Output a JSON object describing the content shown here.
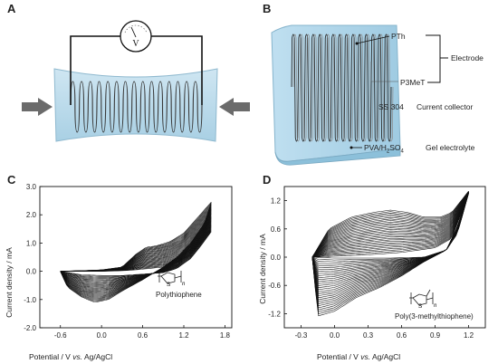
{
  "panels": {
    "a": {
      "letter": "A",
      "meter_label": "V"
    },
    "b": {
      "letter": "B",
      "labels": {
        "pth": "PTh",
        "p3met": "P3MeT",
        "electrode": "Electrode",
        "ss304": "SS 304",
        "current_collector": "Current collector",
        "pva": "PVA/H",
        "pva_sub1": "2",
        "pva_mid": "SO",
        "pva_sub2": "4",
        "gel": "Gel electrolyte"
      }
    },
    "c": {
      "letter": "C",
      "structure_label": "Polythiophene",
      "sulfur": "S",
      "n": "n"
    },
    "d": {
      "letter": "D",
      "structure_label": "Poly(3-methylthiophene)",
      "sulfur": "S",
      "n": "n"
    }
  },
  "chart_data": [
    {
      "type": "line",
      "panel": "C",
      "xlabel_prefix": "Potential / V ",
      "xlabel_italic": "vs.",
      "xlabel_suffix": " Ag/AgCl",
      "ylabel": "Current density / mA",
      "xlim": [
        -0.9,
        1.9
      ],
      "ylim": [
        -2.0,
        3.0
      ],
      "xticks": [
        "-0.6",
        "0.0",
        "0.6",
        "1.2",
        "1.8"
      ],
      "xtick_values": [
        -0.6,
        0.0,
        0.6,
        1.2,
        1.8
      ],
      "yticks": [
        "3.0",
        "2.0",
        "1.0",
        "0.0",
        "-1.0",
        "-2.0"
      ],
      "ytick_values": [
        3.0,
        2.0,
        1.0,
        0.0,
        -1.0,
        -2.0
      ],
      "n_cycles": 30,
      "outer_cycle": {
        "forward": [
          [
            -0.6,
            0.0
          ],
          [
            -0.3,
            0.02
          ],
          [
            0.0,
            0.05
          ],
          [
            0.3,
            0.15
          ],
          [
            0.5,
            0.6
          ],
          [
            0.65,
            0.85
          ],
          [
            0.8,
            0.9
          ],
          [
            1.0,
            1.05
          ],
          [
            1.2,
            1.35
          ],
          [
            1.4,
            1.9
          ],
          [
            1.6,
            2.45
          ]
        ],
        "reverse": [
          [
            1.6,
            2.45
          ],
          [
            1.5,
            1.7
          ],
          [
            1.3,
            1.0
          ],
          [
            1.1,
            0.5
          ],
          [
            0.9,
            0.15
          ],
          [
            0.6,
            -0.3
          ],
          [
            0.3,
            -0.7
          ],
          [
            0.1,
            -1.0
          ],
          [
            -0.1,
            -1.1
          ],
          [
            -0.3,
            -0.9
          ],
          [
            -0.5,
            -0.55
          ],
          [
            -0.6,
            0.0
          ]
        ]
      },
      "inner_cycle": {
        "forward": [
          [
            -0.6,
            0.0
          ],
          [
            -0.3,
            0.0
          ],
          [
            0.0,
            0.0
          ],
          [
            0.3,
            0.02
          ],
          [
            0.5,
            0.05
          ],
          [
            0.7,
            0.1
          ],
          [
            0.9,
            0.15
          ],
          [
            1.1,
            0.3
          ],
          [
            1.3,
            0.6
          ],
          [
            1.45,
            1.0
          ],
          [
            1.6,
            1.4
          ]
        ],
        "reverse": [
          [
            1.6,
            1.4
          ],
          [
            1.45,
            0.9
          ],
          [
            1.3,
            0.45
          ],
          [
            1.1,
            0.1
          ],
          [
            0.9,
            -0.05
          ],
          [
            0.6,
            -0.1
          ],
          [
            0.3,
            -0.15
          ],
          [
            0.0,
            -0.15
          ],
          [
            -0.3,
            -0.12
          ],
          [
            -0.6,
            0.0
          ]
        ]
      }
    },
    {
      "type": "line",
      "panel": "D",
      "xlabel_prefix": "Potential / V ",
      "xlabel_italic": "vs.",
      "xlabel_suffix": " Ag/AgCl",
      "ylabel": "Current density / mA",
      "xlim": [
        -0.45,
        1.35
      ],
      "ylim": [
        -1.5,
        1.5
      ],
      "xticks": [
        "-0.3",
        "0.0",
        "0.3",
        "0.6",
        "0.9",
        "1.2"
      ],
      "xtick_values": [
        -0.3,
        0.0,
        0.3,
        0.6,
        0.9,
        1.2
      ],
      "yticks": [
        "1.2",
        "0.6",
        "0.0",
        "-0.6",
        "-1.2"
      ],
      "ytick_values": [
        1.2,
        0.6,
        0.0,
        -0.6,
        -1.2
      ],
      "n_cycles": 30,
      "outer_cycle": {
        "forward": [
          [
            -0.2,
            0.0
          ],
          [
            -0.05,
            0.6
          ],
          [
            0.15,
            0.85
          ],
          [
            0.35,
            0.95
          ],
          [
            0.5,
            1.0
          ],
          [
            0.65,
            0.95
          ],
          [
            0.8,
            0.85
          ],
          [
            0.95,
            0.85
          ],
          [
            1.05,
            0.95
          ],
          [
            1.2,
            1.4
          ]
        ],
        "reverse": [
          [
            1.2,
            1.4
          ],
          [
            1.1,
            0.65
          ],
          [
            1.0,
            0.15
          ],
          [
            0.8,
            -0.1
          ],
          [
            0.6,
            -0.4
          ],
          [
            0.4,
            -0.65
          ],
          [
            0.2,
            -0.85
          ],
          [
            0.0,
            -1.15
          ],
          [
            -0.15,
            -1.25
          ],
          [
            -0.2,
            0.0
          ]
        ]
      },
      "inner_cycle": {
        "forward": [
          [
            -0.2,
            0.0
          ],
          [
            0.0,
            0.02
          ],
          [
            0.3,
            0.05
          ],
          [
            0.6,
            0.1
          ],
          [
            0.9,
            0.2
          ],
          [
            1.05,
            0.4
          ],
          [
            1.2,
            1.35
          ]
        ],
        "reverse": [
          [
            1.2,
            1.35
          ],
          [
            1.1,
            0.5
          ],
          [
            1.0,
            0.15
          ],
          [
            0.8,
            0.0
          ],
          [
            0.5,
            -0.02
          ],
          [
            0.2,
            -0.02
          ],
          [
            0.0,
            -0.02
          ],
          [
            -0.2,
            0.0
          ]
        ]
      }
    }
  ]
}
